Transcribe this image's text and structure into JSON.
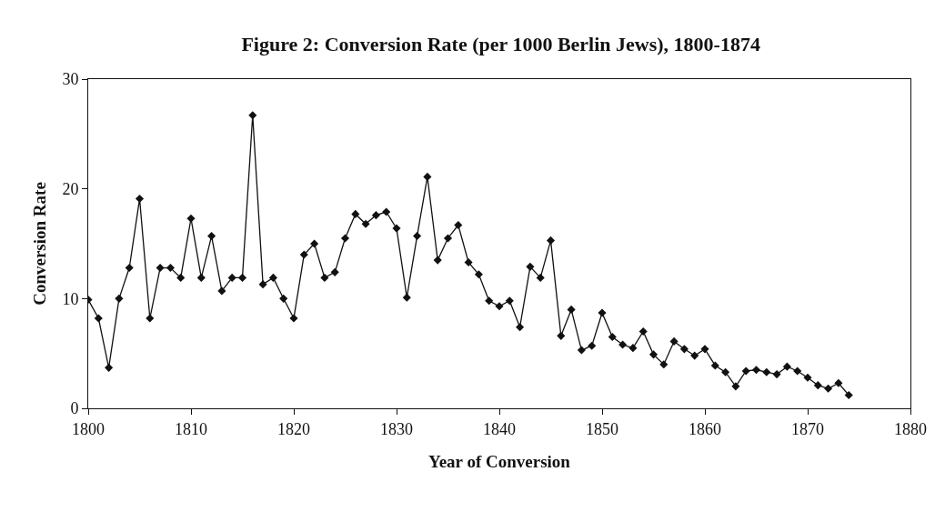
{
  "chart_data": {
    "type": "line",
    "title": "Figure 2: Conversion Rate (per 1000 Berlin Jews), 1800-1874",
    "xlabel": "Year of Conversion",
    "ylabel": "Conversion Rate",
    "x": [
      1800,
      1801,
      1802,
      1803,
      1804,
      1805,
      1806,
      1807,
      1808,
      1809,
      1810,
      1811,
      1812,
      1813,
      1814,
      1815,
      1816,
      1817,
      1818,
      1819,
      1820,
      1821,
      1822,
      1823,
      1824,
      1825,
      1826,
      1827,
      1828,
      1829,
      1830,
      1831,
      1832,
      1833,
      1834,
      1835,
      1836,
      1837,
      1838,
      1839,
      1840,
      1841,
      1842,
      1843,
      1844,
      1845,
      1846,
      1847,
      1848,
      1849,
      1850,
      1851,
      1852,
      1853,
      1854,
      1855,
      1856,
      1857,
      1858,
      1859,
      1860,
      1861,
      1862,
      1863,
      1864,
      1865,
      1866,
      1867,
      1868,
      1869,
      1870,
      1871,
      1872,
      1873,
      1874
    ],
    "series": [
      {
        "color": "#111111",
        "values": [
          9.9,
          8.2,
          3.7,
          10.0,
          12.8,
          19.1,
          8.2,
          12.8,
          12.8,
          11.9,
          17.3,
          11.9,
          15.7,
          10.7,
          11.9,
          11.9,
          26.7,
          11.3,
          11.9,
          10.0,
          8.2,
          14.0,
          15.0,
          11.9,
          12.4,
          15.5,
          17.7,
          16.8,
          17.6,
          17.9,
          16.4,
          10.1,
          15.7,
          21.1,
          13.5,
          15.5,
          16.7,
          13.3,
          12.2,
          9.8,
          9.3,
          9.8,
          7.4,
          12.9,
          11.9,
          15.3,
          6.6,
          9.0,
          5.3,
          5.7,
          8.7,
          6.5,
          5.8,
          5.5,
          7.0,
          4.9,
          4.0,
          6.1,
          5.4,
          4.8,
          5.4,
          3.9,
          3.3,
          2.0,
          3.4,
          3.5,
          3.3,
          3.1,
          3.8,
          3.4,
          2.8,
          2.1,
          1.8,
          2.3,
          1.2
        ]
      }
    ],
    "xlim": [
      1800,
      1880
    ],
    "xticks": [
      1800,
      1810,
      1820,
      1830,
      1840,
      1850,
      1860,
      1870,
      1880
    ],
    "ylim": [
      0,
      30
    ],
    "yticks": [
      0,
      10,
      20,
      30
    ],
    "marker": "diamond",
    "line_style": "solid"
  }
}
